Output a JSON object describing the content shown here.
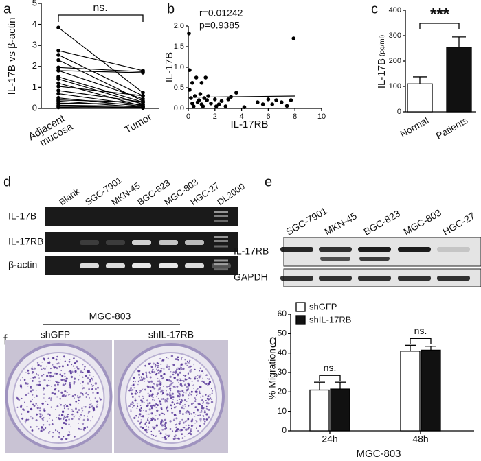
{
  "chart_data": [
    {
      "type": "paired",
      "panel": "a",
      "ylabel": "IL-17B vs β-actin",
      "categories": [
        "Adjacent mucosa",
        "Tumor"
      ],
      "ylim": [
        0,
        5
      ],
      "yticks": [
        0,
        1,
        2,
        3,
        4,
        5
      ],
      "annotation": "ns.",
      "series": [
        {
          "values": [
            3.85,
            0.75
          ]
        },
        {
          "values": [
            2.75,
            1.8
          ]
        },
        {
          "values": [
            2.55,
            0.6
          ]
        },
        {
          "values": [
            2.3,
            0.35
          ]
        },
        {
          "values": [
            1.95,
            1.75
          ]
        },
        {
          "values": [
            1.8,
            1.7
          ]
        },
        {
          "values": [
            1.8,
            0.45
          ]
        },
        {
          "values": [
            1.5,
            0.3
          ]
        },
        {
          "values": [
            1.4,
            0.2
          ]
        },
        {
          "values": [
            1.2,
            0.1
          ]
        },
        {
          "values": [
            1.05,
            0.6
          ]
        },
        {
          "values": [
            0.85,
            0.3
          ]
        },
        {
          "values": [
            0.7,
            0.15
          ]
        },
        {
          "values": [
            0.5,
            0.1
          ]
        },
        {
          "values": [
            0.35,
            0.05
          ]
        },
        {
          "values": [
            0.25,
            0.2
          ]
        },
        {
          "values": [
            0.15,
            0.1
          ]
        },
        {
          "values": [
            0.1,
            0.05
          ]
        },
        {
          "values": [
            0.05,
            0.02
          ]
        },
        {
          "values": [
            0.4,
            0.3
          ]
        }
      ]
    },
    {
      "type": "scatter",
      "panel": "b",
      "xlabel": "IL-17RB",
      "ylabel": "IL-17B",
      "annotations": [
        "r=0.01242",
        "p=0.9385"
      ],
      "xlim": [
        0,
        10
      ],
      "xticks": [
        0,
        2,
        4,
        6,
        8,
        10
      ],
      "ylim": [
        0,
        2
      ],
      "yticks": [
        {
          "value": 0,
          "label": "0.0"
        },
        0.5,
        {
          "value": 1,
          "label": "1.0"
        },
        1.5,
        {
          "value": 2,
          "label": "2.0"
        }
      ],
      "x": [
        0.05,
        7.9,
        0.1,
        0.6,
        1.3,
        0.3,
        1.0,
        0.1,
        0.2,
        0.5,
        0.7,
        0.8,
        1.0,
        1.2,
        1.4,
        1.5,
        2.0,
        2.3,
        2.8,
        3.2,
        3.6,
        0.4,
        0.9,
        1.7,
        2.5,
        3.0,
        4.2,
        5.2,
        5.6,
        6.0,
        6.3,
        6.6,
        7.0,
        7.4,
        7.7,
        1.1,
        0.3,
        2.1
      ],
      "y": [
        1.82,
        1.7,
        0.93,
        0.75,
        0.75,
        0.62,
        0.62,
        0.45,
        0.25,
        0.3,
        0.15,
        0.2,
        0.1,
        0.25,
        0.2,
        0.3,
        0.22,
        0.1,
        0.05,
        0.28,
        0.38,
        0.05,
        0.35,
        0.12,
        0.18,
        0.22,
        0.03,
        0.15,
        0.1,
        0.22,
        0.1,
        0.2,
        0.15,
        0.06,
        0.2,
        0.05,
        0.12,
        0.05
      ],
      "fit": {
        "x": [
          0,
          8
        ],
        "y": [
          0.27,
          0.3
        ]
      }
    },
    {
      "type": "bar",
      "panel": "c",
      "ylabel": "IL-17B",
      "ylabel_unit": "(pg/ml)",
      "annotation": "***",
      "categories": [
        "Normal",
        "Patients"
      ],
      "values": [
        110,
        255
      ],
      "errors": [
        28,
        40
      ],
      "colors": [
        "#ffffff",
        "#111111"
      ],
      "ylim": [
        0,
        400
      ],
      "yticks": [
        0,
        100,
        200,
        300,
        400
      ]
    },
    {
      "type": "grouped_bar",
      "panel": "g",
      "ylabel": "% Migration",
      "xlabel": "MGC-803",
      "annotations": [
        "ns.",
        "ns."
      ],
      "categories": [
        "24h",
        "48h"
      ],
      "series": [
        {
          "name": "shGFP",
          "color": "#ffffff",
          "values": [
            21,
            41
          ],
          "errors": [
            4,
            3
          ]
        },
        {
          "name": "shIL-17RB",
          "color": "#111111",
          "values": [
            21.5,
            41.5
          ],
          "errors": [
            3.5,
            2
          ]
        }
      ],
      "ylim": [
        0,
        60
      ],
      "yticks": [
        0,
        10,
        20,
        30,
        40,
        50,
        60
      ]
    }
  ],
  "gel": {
    "panel": "d",
    "lanes": [
      "Blank",
      "SGC-7901",
      "MKN-45",
      "BGC-823",
      "MGC-803",
      "HGC-27",
      "DL2000"
    ],
    "rows": [
      "IL-17B",
      "IL-17RB",
      "β-actin"
    ]
  },
  "blot": {
    "panel": "e",
    "lanes": [
      "SGC-7901",
      "MKN-45",
      "BGC-823",
      "MGC-803",
      "HGC-27"
    ],
    "rows": [
      "IL-17RB",
      "GAPDH"
    ]
  },
  "plates": {
    "panel": "f",
    "title": "MGC-803",
    "labels": [
      "shGFP",
      "shIL-17RB"
    ]
  }
}
